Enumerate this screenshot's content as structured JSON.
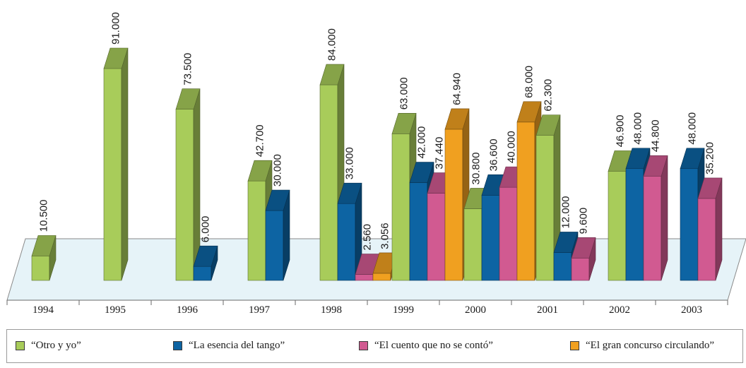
{
  "chart_data": {
    "type": "bar",
    "title": "",
    "xlabel": "",
    "ylabel": "",
    "ylim": [
      0,
      100000
    ],
    "grid": false,
    "legend_position": "bottom",
    "years": [
      "1994",
      "1995",
      "1996",
      "1997",
      "1998",
      "1999",
      "2000",
      "2001",
      "2002",
      "2003"
    ],
    "series": [
      {
        "name": "“Otro y yo”",
        "color": "#a8cc5a"
      },
      {
        "name": "“La esencia del tango”",
        "color": "#0d64a3"
      },
      {
        "name": "“El cuento que no se contó”",
        "color": "#d15a91"
      },
      {
        "name": "“El gran concurso circulando”",
        "color": "#f0a020"
      }
    ],
    "bars": [
      {
        "year": "1994",
        "series": 0,
        "value": 10500,
        "label": "10.500"
      },
      {
        "year": "1995",
        "series": 0,
        "value": 91000,
        "label": "91.000"
      },
      {
        "year": "1996",
        "series": 0,
        "value": 73500,
        "label": "73.500"
      },
      {
        "year": "1996",
        "series": 1,
        "value": 6000,
        "label": "6.000"
      },
      {
        "year": "1997",
        "series": 0,
        "value": 42700,
        "label": "42.700"
      },
      {
        "year": "1997",
        "series": 1,
        "value": 30000,
        "label": "30.000"
      },
      {
        "year": "1998",
        "series": 0,
        "value": 84000,
        "label": "84.000"
      },
      {
        "year": "1998",
        "series": 1,
        "value": 33000,
        "label": "33.000"
      },
      {
        "year": "1998",
        "series": 2,
        "value": 2560,
        "label": "2.560"
      },
      {
        "year": "1998",
        "series": 3,
        "value": 3056,
        "label": "3.056"
      },
      {
        "year": "1999",
        "series": 0,
        "value": 63000,
        "label": "63.000"
      },
      {
        "year": "1999",
        "series": 1,
        "value": 42000,
        "label": "42.000"
      },
      {
        "year": "1999",
        "series": 2,
        "value": 37440,
        "label": "37.440"
      },
      {
        "year": "1999",
        "series": 3,
        "value": 64940,
        "label": "64.940"
      },
      {
        "year": "2000",
        "series": 0,
        "value": 30800,
        "label": "30.800"
      },
      {
        "year": "2000",
        "series": 1,
        "value": 36600,
        "label": "36.600"
      },
      {
        "year": "2000",
        "series": 2,
        "value": 40000,
        "label": "40.000"
      },
      {
        "year": "2000",
        "series": 3,
        "value": 68000,
        "label": "68.000"
      },
      {
        "year": "2001",
        "series": 0,
        "value": 62300,
        "label": "62.300"
      },
      {
        "year": "2001",
        "series": 1,
        "value": 12000,
        "label": "12.000"
      },
      {
        "year": "2001",
        "series": 2,
        "value": 9600,
        "label": "9.600"
      },
      {
        "year": "2002",
        "series": 0,
        "value": 46900,
        "label": "46.900"
      },
      {
        "year": "2002",
        "series": 1,
        "value": 48000,
        "label": "48.000"
      },
      {
        "year": "2002",
        "series": 2,
        "value": 44800,
        "label": "44.800"
      },
      {
        "year": "2003",
        "series": 1,
        "value": 48000,
        "label": "48.000"
      },
      {
        "year": "2003",
        "series": 2,
        "value": 35200,
        "label": "35.200"
      }
    ]
  }
}
